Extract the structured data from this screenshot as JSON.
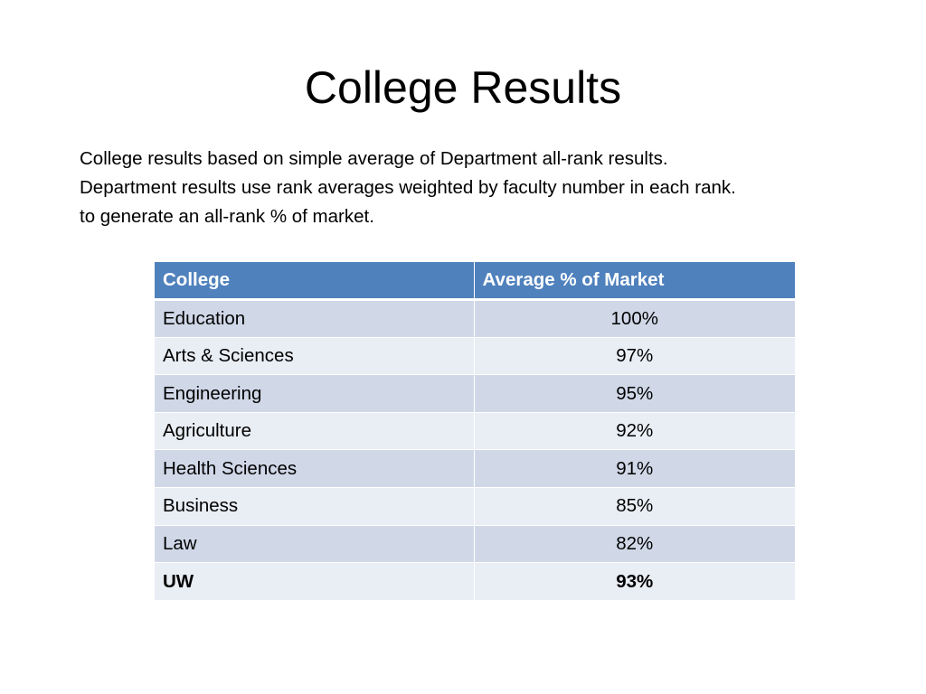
{
  "title": "College Results",
  "description": {
    "lines": [
      "College results based on simple average of Department all-rank results.",
      "Department results use rank averages weighted by faculty number in each rank.",
      "to generate an all-rank % of market."
    ]
  },
  "table": {
    "columns": [
      "College",
      "Average % of Market"
    ],
    "rows": [
      {
        "college": "Education",
        "value": "100%"
      },
      {
        "college": "Arts & Sciences",
        "value": "97%"
      },
      {
        "college": "Engineering",
        "value": "95%"
      },
      {
        "college": "Agriculture",
        "value": "92%"
      },
      {
        "college": "Health Sciences",
        "value": "91%"
      },
      {
        "college": "Business",
        "value": "85%"
      },
      {
        "college": "Law",
        "value": "82%"
      }
    ],
    "total": {
      "college": "UW",
      "value": "93%"
    }
  },
  "colors": {
    "header": "#4f81bd",
    "row_dark": "#d0d8e8",
    "row_light": "#e9edf4"
  }
}
